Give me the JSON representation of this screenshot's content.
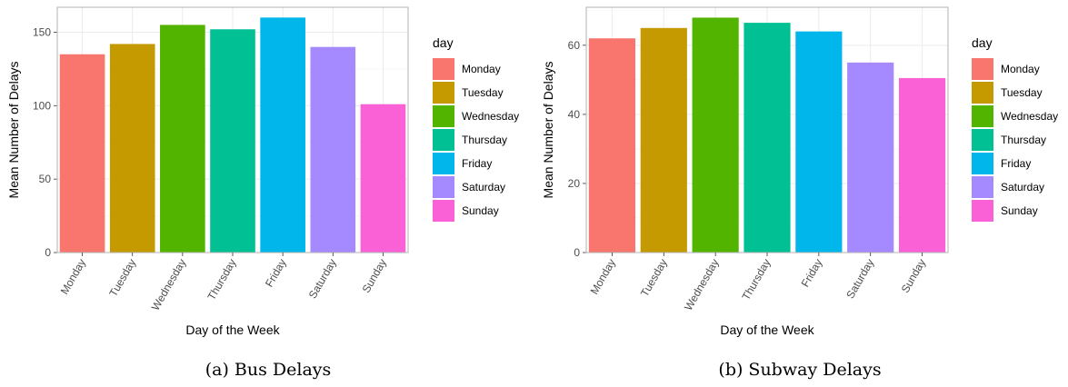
{
  "chart_data": [
    {
      "type": "bar",
      "caption": "(a) Bus Delays",
      "xlabel": "Day of the Week",
      "ylabel": "Mean Number of Delays",
      "categories": [
        "Monday",
        "Tuesday",
        "Wednesday",
        "Thursday",
        "Friday",
        "Saturday",
        "Sunday"
      ],
      "values": [
        135,
        142,
        155,
        152,
        160,
        140,
        101
      ],
      "ylim": [
        0,
        167
      ],
      "yticks": [
        0,
        50,
        100,
        150
      ],
      "legend_title": "day",
      "legend_position": "right",
      "grid": true,
      "colors": [
        "#F8766D",
        "#C49A00",
        "#53B400",
        "#00C094",
        "#00B6EB",
        "#A58AFF",
        "#FB61D7"
      ]
    },
    {
      "type": "bar",
      "caption": "(b) Subway Delays",
      "xlabel": "Day of the Week",
      "ylabel": "Mean Number of Delays",
      "categories": [
        "Monday",
        "Tuesday",
        "Wednesday",
        "Thursday",
        "Friday",
        "Saturday",
        "Sunday"
      ],
      "values": [
        62,
        65,
        68,
        66.5,
        64,
        55,
        50.5
      ],
      "ylim": [
        0,
        71
      ],
      "yticks": [
        0,
        20,
        40,
        60
      ],
      "legend_title": "day",
      "legend_position": "right",
      "grid": true,
      "colors": [
        "#F8766D",
        "#C49A00",
        "#53B400",
        "#00C094",
        "#00B6EB",
        "#A58AFF",
        "#FB61D7"
      ]
    }
  ]
}
